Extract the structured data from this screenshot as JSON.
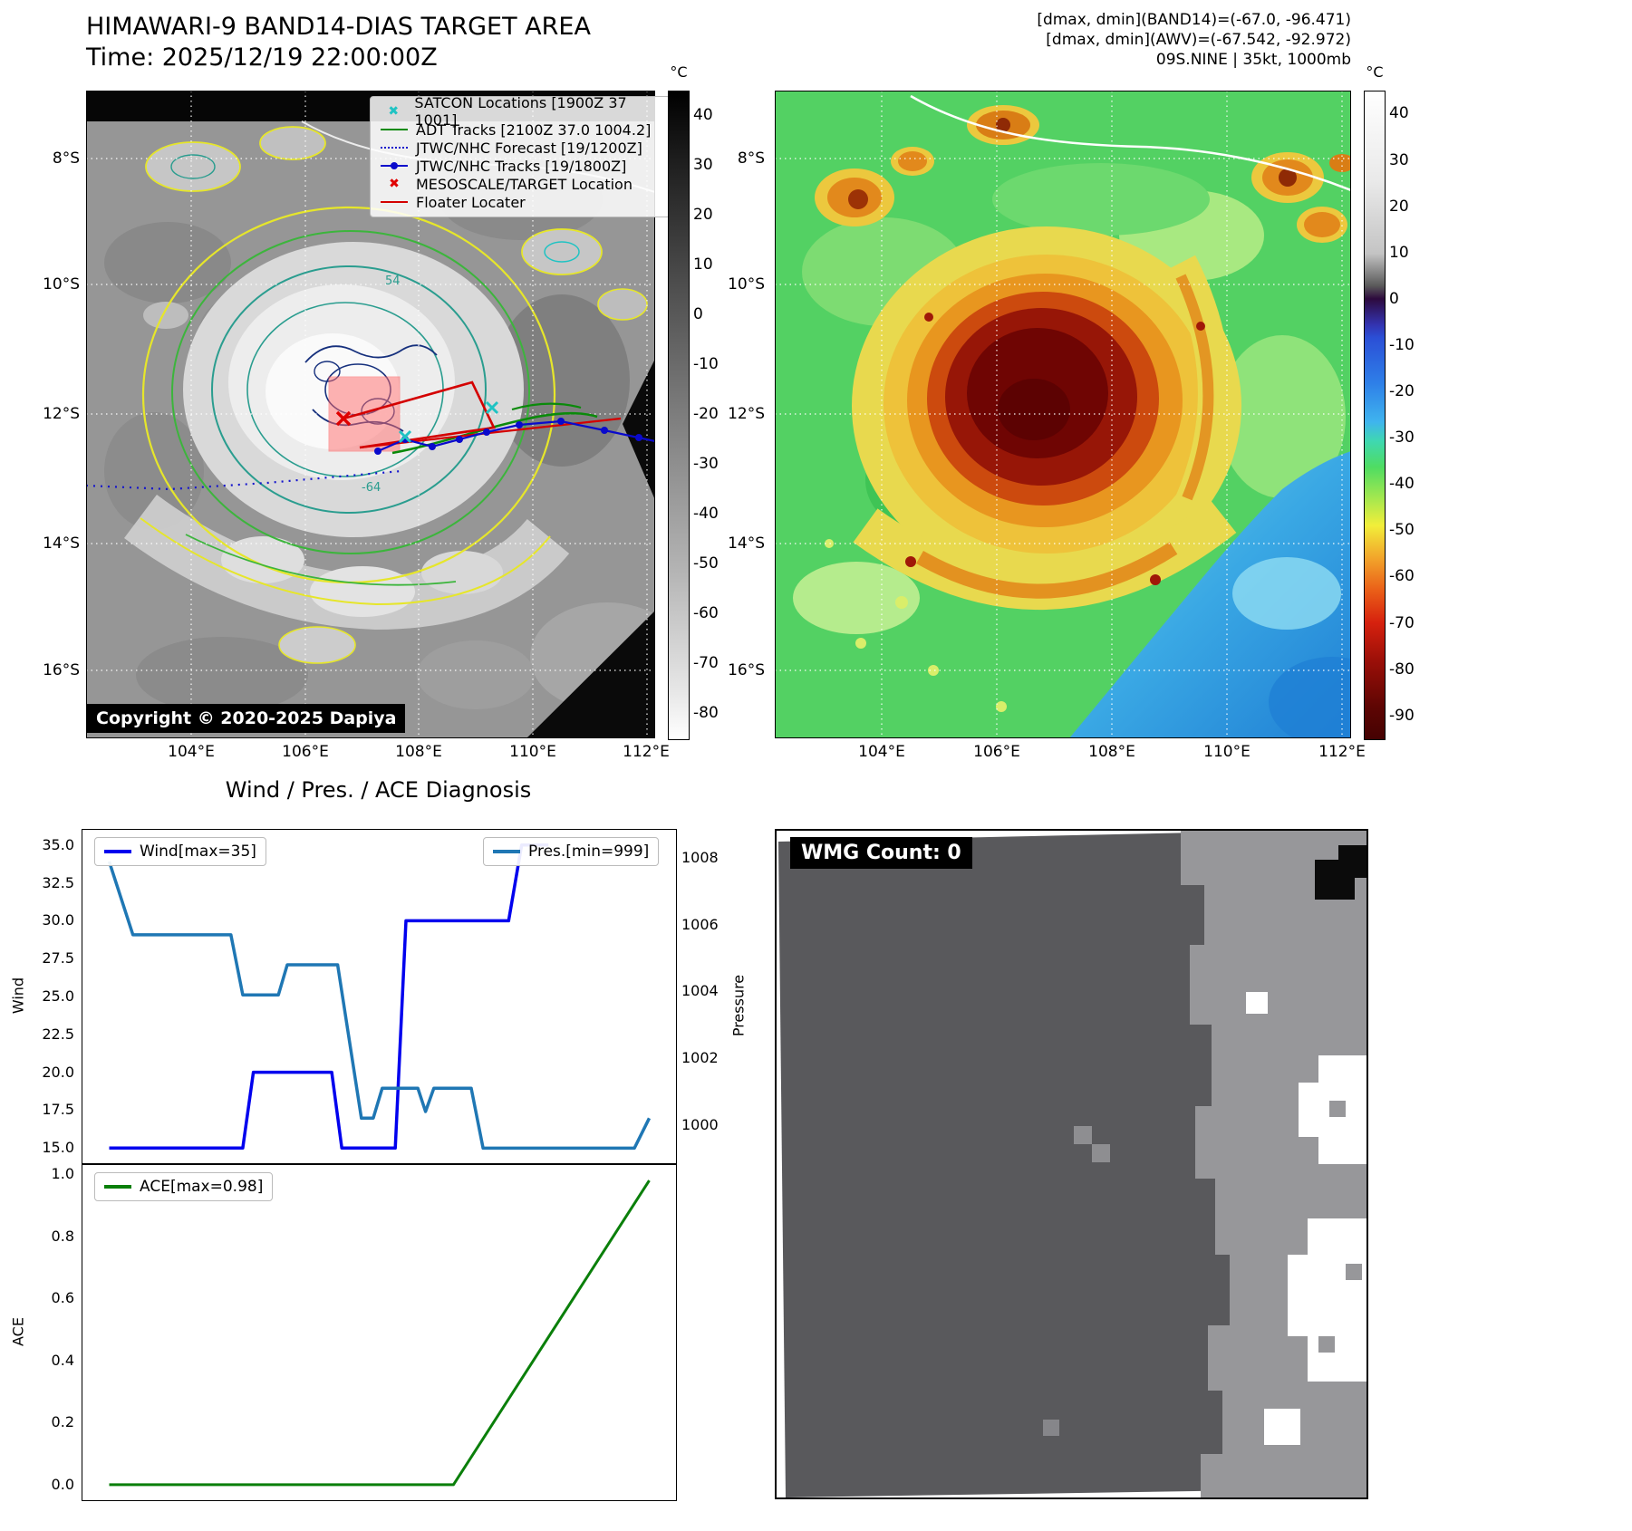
{
  "panel_band14": {
    "title": "HIMAWARI-9 BAND14-DIAS TARGET AREA",
    "subtitle": "Time: 2025/12/19 22:00:00Z",
    "copyright": "Copyright © 2020-2025 Dapiya",
    "colorbar": {
      "unit": "°C",
      "ticks": [
        40,
        30,
        20,
        10,
        0,
        -10,
        -20,
        -30,
        -40,
        -50,
        -60,
        -70,
        -80
      ]
    },
    "x_ticks": [
      "104°E",
      "106°E",
      "108°E",
      "110°E",
      "112°E"
    ],
    "y_ticks": [
      "8°S",
      "10°S",
      "12°S",
      "14°S",
      "16°S"
    ],
    "contour_labels": [
      "54",
      "-64"
    ],
    "legend": [
      {
        "label": "SATCON Locations [1900Z 37 1001]",
        "marker": "x-marker",
        "color": "#1fc3c3"
      },
      {
        "label": "ADT Tracks [2100Z 37.0 1004.2]",
        "marker": "solid-line",
        "color": "#0a8a0a"
      },
      {
        "label": "JTWC/NHC Forecast [19/1200Z]",
        "marker": "dotted-line",
        "color": "#1515cc"
      },
      {
        "label": "JTWC/NHC Tracks [19/1800Z]",
        "marker": "line-with-dot",
        "color": "#0a0acc"
      },
      {
        "label": "MESOSCALE/TARGET Location",
        "marker": "x-marker",
        "color": "#e00000"
      },
      {
        "label": "Floater Locater",
        "marker": "solid-line",
        "color": "#d40000"
      }
    ]
  },
  "panel_awv": {
    "header_lines": [
      "[dmax, dmin](BAND14)=(-67.0, -96.471)",
      "[dmax, dmin](AWV)=(-67.542, -92.972)",
      "09S.NINE | 35kt, 1000mb"
    ],
    "colorbar": {
      "unit": "°C",
      "ticks": [
        40,
        30,
        20,
        10,
        0,
        -10,
        -20,
        -30,
        -40,
        -50,
        -60,
        -70,
        -80,
        -90
      ]
    },
    "x_ticks": [
      "104°E",
      "106°E",
      "108°E",
      "110°E",
      "112°E"
    ],
    "y_ticks": [
      "8°S",
      "10°S",
      "12°S",
      "14°S",
      "16°S"
    ]
  },
  "diagnosis": {
    "title": "Wind / Pres. / ACE Diagnosis",
    "wind_legend": "Wind[max=35]",
    "pres_legend": "Pres.[min=999]",
    "ace_legend": "ACE[max=0.98]",
    "wind_ylabel": "Wind",
    "pres_ylabel": "Pressure",
    "ace_ylabel": "ACE",
    "wind_ticks": [
      "15.0",
      "17.5",
      "20.0",
      "22.5",
      "25.0",
      "27.5",
      "30.0",
      "32.5",
      "35.0"
    ],
    "pres_ticks": [
      "1000",
      "1002",
      "1004",
      "1006",
      "1008"
    ],
    "ace_ticks": [
      "0.0",
      "0.2",
      "0.4",
      "0.6",
      "0.8",
      "1.0"
    ]
  },
  "wmg": {
    "label": "WMG Count: 0"
  },
  "chart_data": [
    {
      "type": "line",
      "title": "Wind / Pres. / ACE Diagnosis",
      "x_axis_note": "time steps (axis unlabeled)",
      "xlim": [
        0,
        1
      ],
      "grid": false,
      "series": [
        {
          "name": "Wind[max=35]",
          "axis": "left",
          "ylabel": "Wind",
          "yticks": [
            15,
            17.5,
            20,
            22.5,
            25,
            27.5,
            30,
            32.5,
            35
          ],
          "ylim": [
            14,
            36
          ],
          "color": "#0000ee",
          "width": 3.5,
          "x": [
            0.045,
            0.27,
            0.288,
            0.42,
            0.437,
            0.527,
            0.545,
            0.718,
            0.74,
            0.785
          ],
          "y": [
            15,
            15,
            20,
            20,
            15,
            15,
            30,
            30,
            35,
            35
          ]
        },
        {
          "name": "Pres.[min=999]",
          "axis": "right",
          "ylabel": "Pressure",
          "yticks": [
            1000,
            1002,
            1004,
            1006,
            1008
          ],
          "ylim": [
            998.85,
            1008.85
          ],
          "color": "#1f77b4",
          "width": 3.5,
          "x": [
            0.045,
            0.085,
            0.25,
            0.27,
            0.33,
            0.345,
            0.43,
            0.47,
            0.49,
            0.505,
            0.565,
            0.578,
            0.592,
            0.655,
            0.675,
            0.93,
            0.955
          ],
          "y": [
            1007.9,
            1005.7,
            1005.7,
            1003.9,
            1003.9,
            1004.8,
            1004.8,
            1000.2,
            1000.2,
            1001.1,
            1001.1,
            1000.4,
            1001.1,
            1001.1,
            999.3,
            999.3,
            1000.2
          ]
        }
      ]
    },
    {
      "type": "line",
      "x_axis_note": "time steps (axis unlabeled)",
      "xlim": [
        0,
        1
      ],
      "grid": false,
      "series": [
        {
          "name": "ACE[max=0.98]",
          "axis": "left",
          "ylabel": "ACE",
          "yticks": [
            0,
            0.2,
            0.4,
            0.6,
            0.8,
            1.0
          ],
          "ylim": [
            -0.05,
            1.03
          ],
          "color": "#0a7f0a",
          "width": 3,
          "x": [
            0.045,
            0.625,
            0.955
          ],
          "y": [
            0,
            0,
            0.98
          ]
        }
      ]
    }
  ]
}
